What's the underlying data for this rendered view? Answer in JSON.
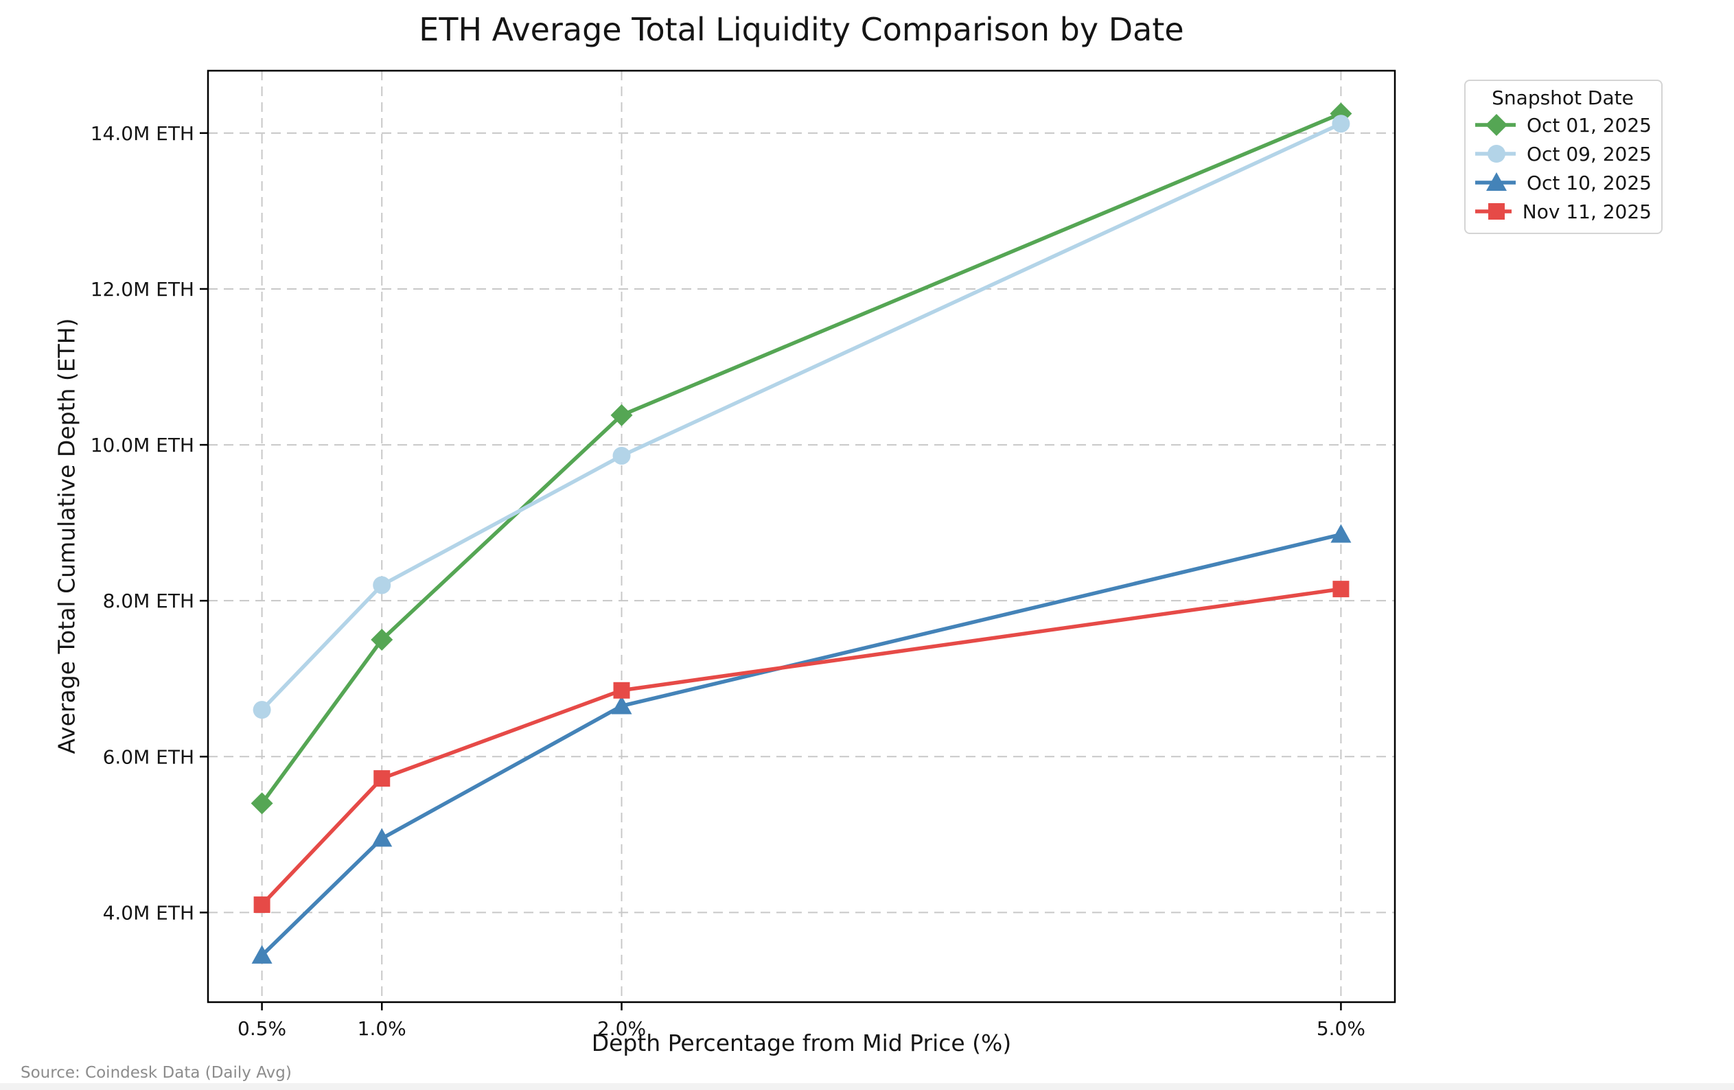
{
  "page": {
    "source_note": "Source: Coindesk Data (Daily Avg)"
  },
  "chart_data": {
    "type": "line",
    "title": "ETH Average Total Liquidity Comparison by Date",
    "xlabel": "Depth Percentage from Mid Price (%)",
    "ylabel": "Average Total Cumulative Depth (ETH)",
    "x": [
      0.5,
      1.0,
      2.0,
      5.0
    ],
    "x_tick_labels": [
      "0.5%",
      "1.0%",
      "2.0%",
      "5.0%"
    ],
    "y_ticks": [
      4,
      6,
      8,
      10,
      12,
      14
    ],
    "y_tick_labels": [
      "4.0M ETH",
      "6.0M ETH",
      "8.0M ETH",
      "10.0M ETH",
      "12.0M ETH",
      "14.0M ETH"
    ],
    "y_unit": "million ETH",
    "xlim": [
      0.275,
      5.225
    ],
    "ylim": [
      2.85,
      14.8
    ],
    "grid": true,
    "legend": {
      "title": "Snapshot Date",
      "position": "upper right, outside plot"
    },
    "series": [
      {
        "name": "Oct 01, 2025",
        "color": "#55a654",
        "marker": "diamond",
        "values": [
          5.4,
          7.5,
          10.38,
          14.25
        ]
      },
      {
        "name": "Oct 09, 2025",
        "color": "#b3d4e8",
        "marker": "circle",
        "values": [
          6.6,
          8.2,
          9.86,
          14.12
        ]
      },
      {
        "name": "Oct 10, 2025",
        "color": "#4483b8",
        "marker": "triangle-up",
        "values": [
          3.45,
          4.95,
          6.65,
          8.85
        ]
      },
      {
        "name": "Nov 11, 2025",
        "color": "#e64a47",
        "marker": "square",
        "values": [
          4.1,
          5.72,
          6.85,
          8.15
        ]
      }
    ],
    "style": {
      "grid_color": "#c8c8c8",
      "spine_color": "#000000",
      "text_color": "#151515",
      "source_color": "#8c8c8c"
    }
  }
}
